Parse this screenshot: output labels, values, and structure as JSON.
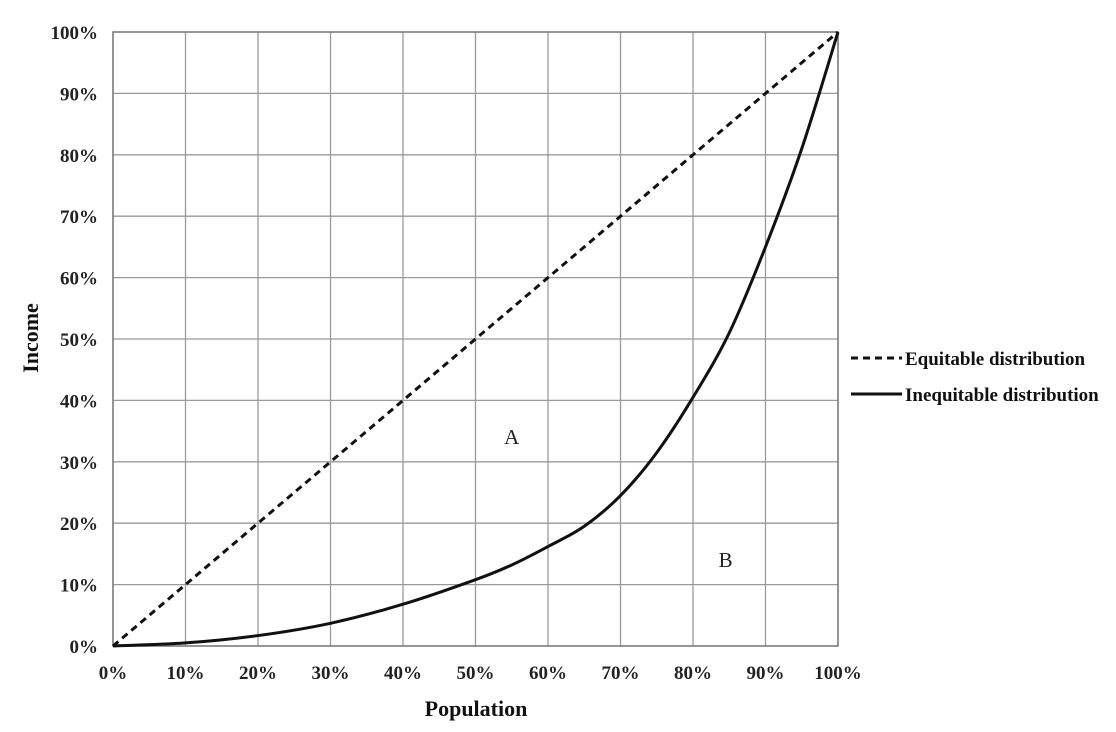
{
  "chart_data": {
    "type": "line",
    "title": "",
    "xlabel": "Population",
    "ylabel": "Income",
    "xlim": [
      0,
      100
    ],
    "ylim": [
      0,
      100
    ],
    "grid": true,
    "x_tick_labels": [
      "0%",
      "10%",
      "20%",
      "30%",
      "40%",
      "50%",
      "60%",
      "70%",
      "80%",
      "90%",
      "100%"
    ],
    "y_tick_labels": [
      "0%",
      "10%",
      "20%",
      "30%",
      "40%",
      "50%",
      "60%",
      "70%",
      "80%",
      "90%",
      "100%"
    ],
    "legend_position": "right",
    "series": [
      {
        "name": "Equitable distribution",
        "style": "dashed",
        "x": [
          0,
          100
        ],
        "y": [
          0,
          100
        ]
      },
      {
        "name": "Inequitable distribution",
        "style": "solid",
        "x": [
          0,
          10,
          20,
          30,
          40,
          50,
          55,
          60,
          65,
          70,
          75,
          80,
          85,
          90,
          95,
          100
        ],
        "y": [
          0,
          0.5,
          1.7,
          3.7,
          6.8,
          10.8,
          13.2,
          16.2,
          19.5,
          24.5,
          31.5,
          40.5,
          51,
          65,
          81,
          100
        ]
      }
    ],
    "annotations": [
      {
        "text": "A",
        "x": 55,
        "y": 34
      },
      {
        "text": "B",
        "x": 84.5,
        "y": 14
      }
    ]
  }
}
